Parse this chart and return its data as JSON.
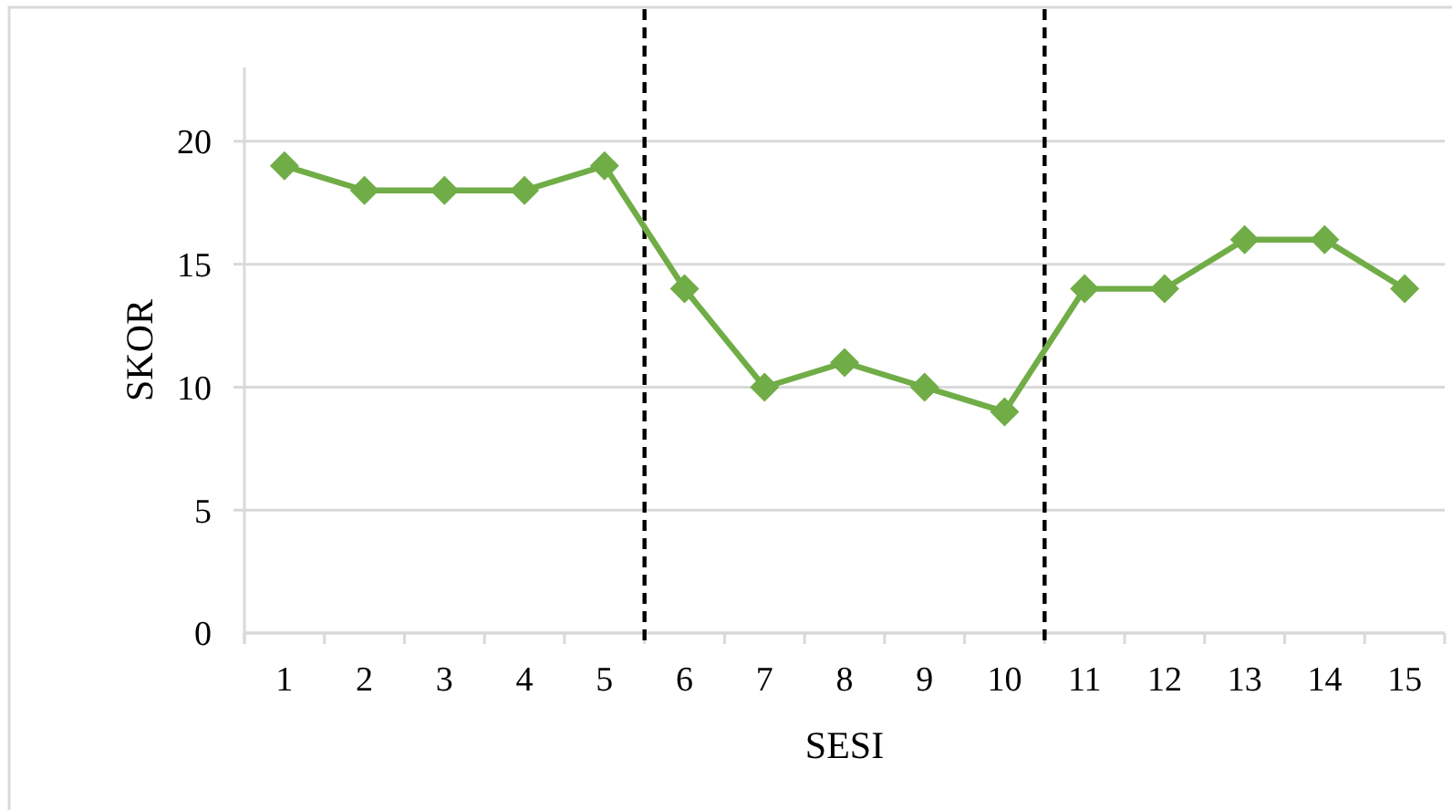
{
  "chart_data": {
    "type": "line",
    "xlabel": "SESI",
    "ylabel": "SKOR",
    "x": [
      1,
      2,
      3,
      4,
      5,
      6,
      7,
      8,
      9,
      10,
      11,
      12,
      13,
      14,
      15
    ],
    "series": [
      {
        "color": "#70ad47",
        "values": [
          19,
          18,
          18,
          18,
          19,
          14,
          10,
          11,
          10,
          9,
          14,
          14,
          16,
          16,
          14
        ]
      }
    ],
    "xlim": [
      0.5,
      15.5
    ],
    "xticks": [
      1,
      2,
      3,
      4,
      5,
      6,
      7,
      8,
      9,
      10,
      11,
      12,
      13,
      14,
      15
    ],
    "ylim": [
      0,
      23
    ],
    "yticks": [
      0,
      5,
      10,
      15,
      20
    ],
    "grid": "y",
    "marker": "diamond",
    "ref_lines": [
      {
        "axis": "x",
        "value": 5.5,
        "color": "#000000",
        "line_style": "dashed"
      },
      {
        "axis": "x",
        "value": 10.5,
        "color": "#000000",
        "line_style": "dashed"
      }
    ]
  }
}
